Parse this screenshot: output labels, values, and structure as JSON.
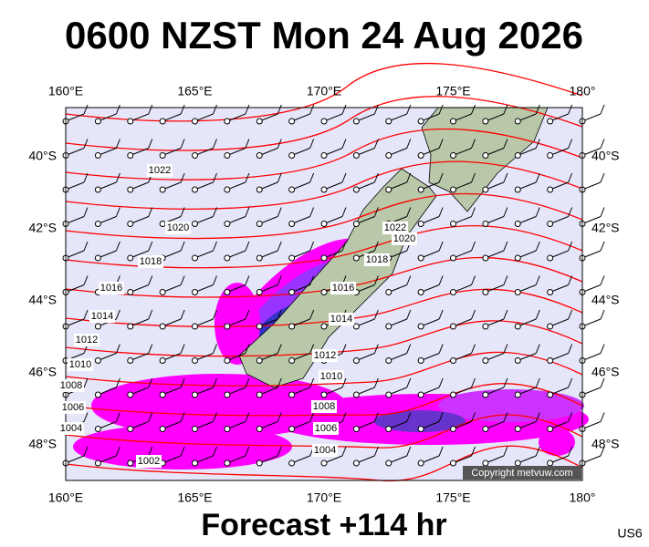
{
  "title": "0600 NZST Mon 24 Aug 2026",
  "longitude_labels": [
    "160°E",
    "165°E",
    "170°E",
    "175°E",
    "180°"
  ],
  "latitude_labels": [
    "40°S",
    "42°S",
    "44°S",
    "46°S",
    "48°S"
  ],
  "isobar_labels": [
    "1022",
    "1020",
    "1018",
    "1016",
    "1014",
    "1012",
    "1010",
    "1008",
    "1006",
    "1004",
    "1002",
    "1022",
    "1020",
    "1018",
    "1016",
    "1014",
    "1012",
    "1010",
    "1008",
    "1006",
    "1004"
  ],
  "copyright": "Copyright metvuw.com",
  "footer": "Forecast +114 hr",
  "code": "US6"
}
